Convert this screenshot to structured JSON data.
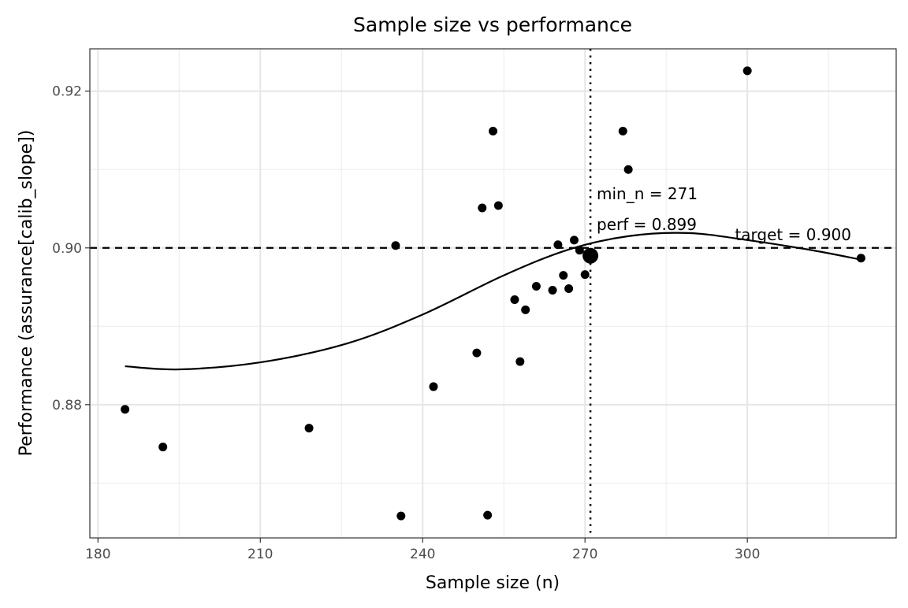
{
  "chart_data": {
    "type": "scatter",
    "title": "Sample size vs performance",
    "xlabel": "Sample size (n)",
    "ylabel": "Performance (assurance[calib_slope])",
    "xlim": [
      178.5,
      327.5
    ],
    "ylim": [
      0.863,
      0.9254
    ],
    "x_ticks": [
      180,
      210,
      240,
      270,
      300
    ],
    "x_minor_ticks": [
      195,
      225,
      255,
      285,
      315
    ],
    "y_ticks": [
      0.88,
      0.9,
      0.92
    ],
    "y_tick_labels": [
      "0.88",
      "0.90",
      "0.92"
    ],
    "y_minor_ticks": [
      0.87,
      0.89,
      0.91
    ],
    "grid": true,
    "points": [
      {
        "x": 185,
        "y": 0.8794
      },
      {
        "x": 192,
        "y": 0.8746
      },
      {
        "x": 219,
        "y": 0.877
      },
      {
        "x": 235,
        "y": 0.9003
      },
      {
        "x": 236,
        "y": 0.8658
      },
      {
        "x": 242,
        "y": 0.8823
      },
      {
        "x": 250,
        "y": 0.8866
      },
      {
        "x": 251,
        "y": 0.9051
      },
      {
        "x": 252,
        "y": 0.8659
      },
      {
        "x": 253,
        "y": 0.9149
      },
      {
        "x": 254,
        "y": 0.9054
      },
      {
        "x": 257,
        "y": 0.8934
      },
      {
        "x": 258,
        "y": 0.8855
      },
      {
        "x": 259,
        "y": 0.8921
      },
      {
        "x": 261,
        "y": 0.8951
      },
      {
        "x": 264,
        "y": 0.8946
      },
      {
        "x": 265,
        "y": 0.9004
      },
      {
        "x": 266,
        "y": 0.8965
      },
      {
        "x": 267,
        "y": 0.8948
      },
      {
        "x": 268,
        "y": 0.901
      },
      {
        "x": 269,
        "y": 0.8997
      },
      {
        "x": 270,
        "y": 0.8966
      },
      {
        "x": 277,
        "y": 0.9149
      },
      {
        "x": 278,
        "y": 0.91
      },
      {
        "x": 300,
        "y": 0.9226
      },
      {
        "x": 321,
        "y": 0.8987
      }
    ],
    "smooth_curve": [
      {
        "x": 185,
        "y": 0.8849
      },
      {
        "x": 195,
        "y": 0.8845
      },
      {
        "x": 210,
        "y": 0.8854
      },
      {
        "x": 226,
        "y": 0.8878
      },
      {
        "x": 240,
        "y": 0.8915
      },
      {
        "x": 255,
        "y": 0.8965
      },
      {
        "x": 267,
        "y": 0.8998
      },
      {
        "x": 278,
        "y": 0.9015
      },
      {
        "x": 289,
        "y": 0.9019
      },
      {
        "x": 300,
        "y": 0.901
      },
      {
        "x": 312,
        "y": 0.8997
      },
      {
        "x": 321,
        "y": 0.8985
      }
    ],
    "highlight_point": {
      "x": 271,
      "y": 0.899
    },
    "target_line": {
      "y": 0.9,
      "label": "target = 0.900"
    },
    "min_n_line": {
      "x": 271
    },
    "annotations": [
      "min_n = 271",
      "perf = 0.899"
    ]
  }
}
